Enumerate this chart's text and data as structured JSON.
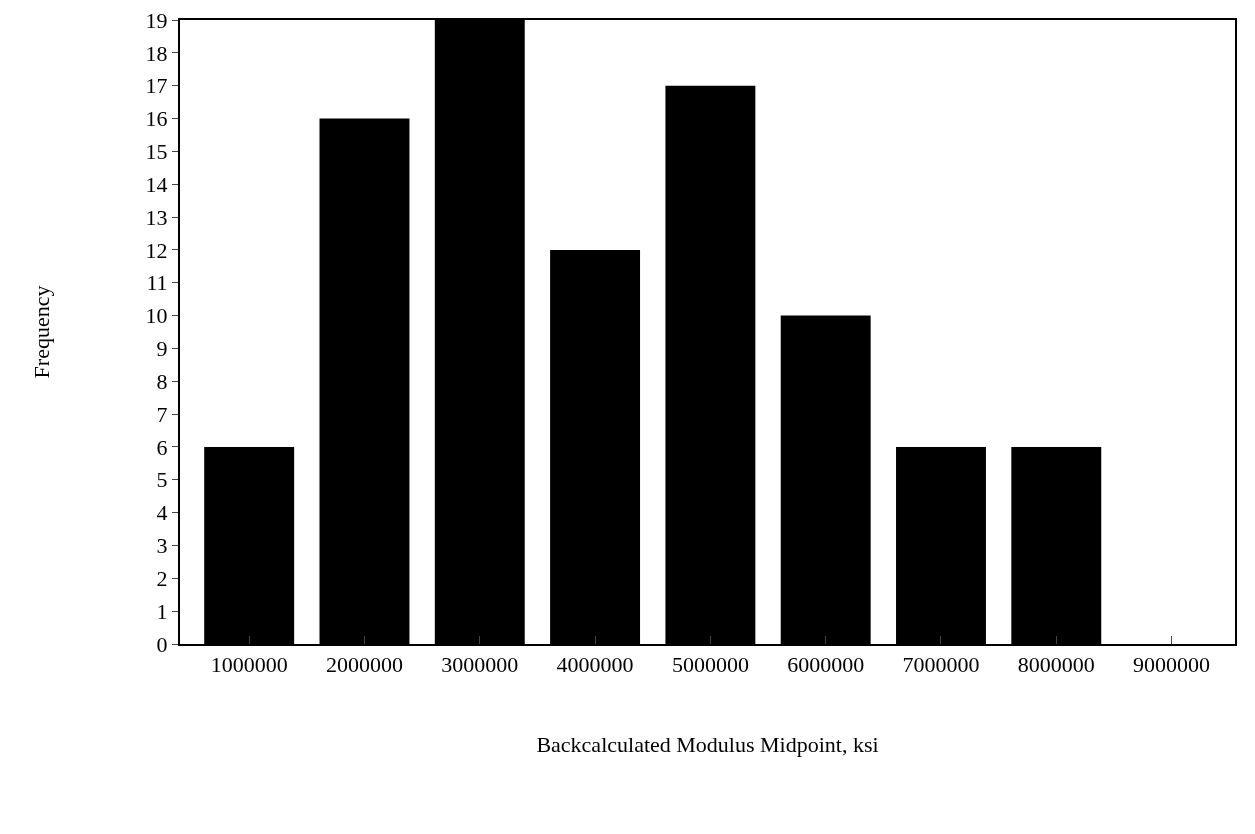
{
  "chart_data": {
    "type": "bar",
    "xlabel": "Backcalculated Modulus Midpoint, ksi",
    "ylabel": "Frequency",
    "categories": [
      "1000000",
      "2000000",
      "3000000",
      "4000000",
      "5000000",
      "6000000",
      "7000000",
      "8000000",
      "9000000"
    ],
    "values": [
      6,
      16,
      19,
      12,
      17,
      10,
      6,
      6,
      0
    ],
    "color": "#000000",
    "ylim": [
      0,
      19
    ],
    "yticks": [
      0,
      1,
      2,
      3,
      4,
      5,
      6,
      7,
      8,
      9,
      10,
      11,
      12,
      13,
      14,
      15,
      16,
      17,
      18,
      19
    ],
    "grid": false
  }
}
